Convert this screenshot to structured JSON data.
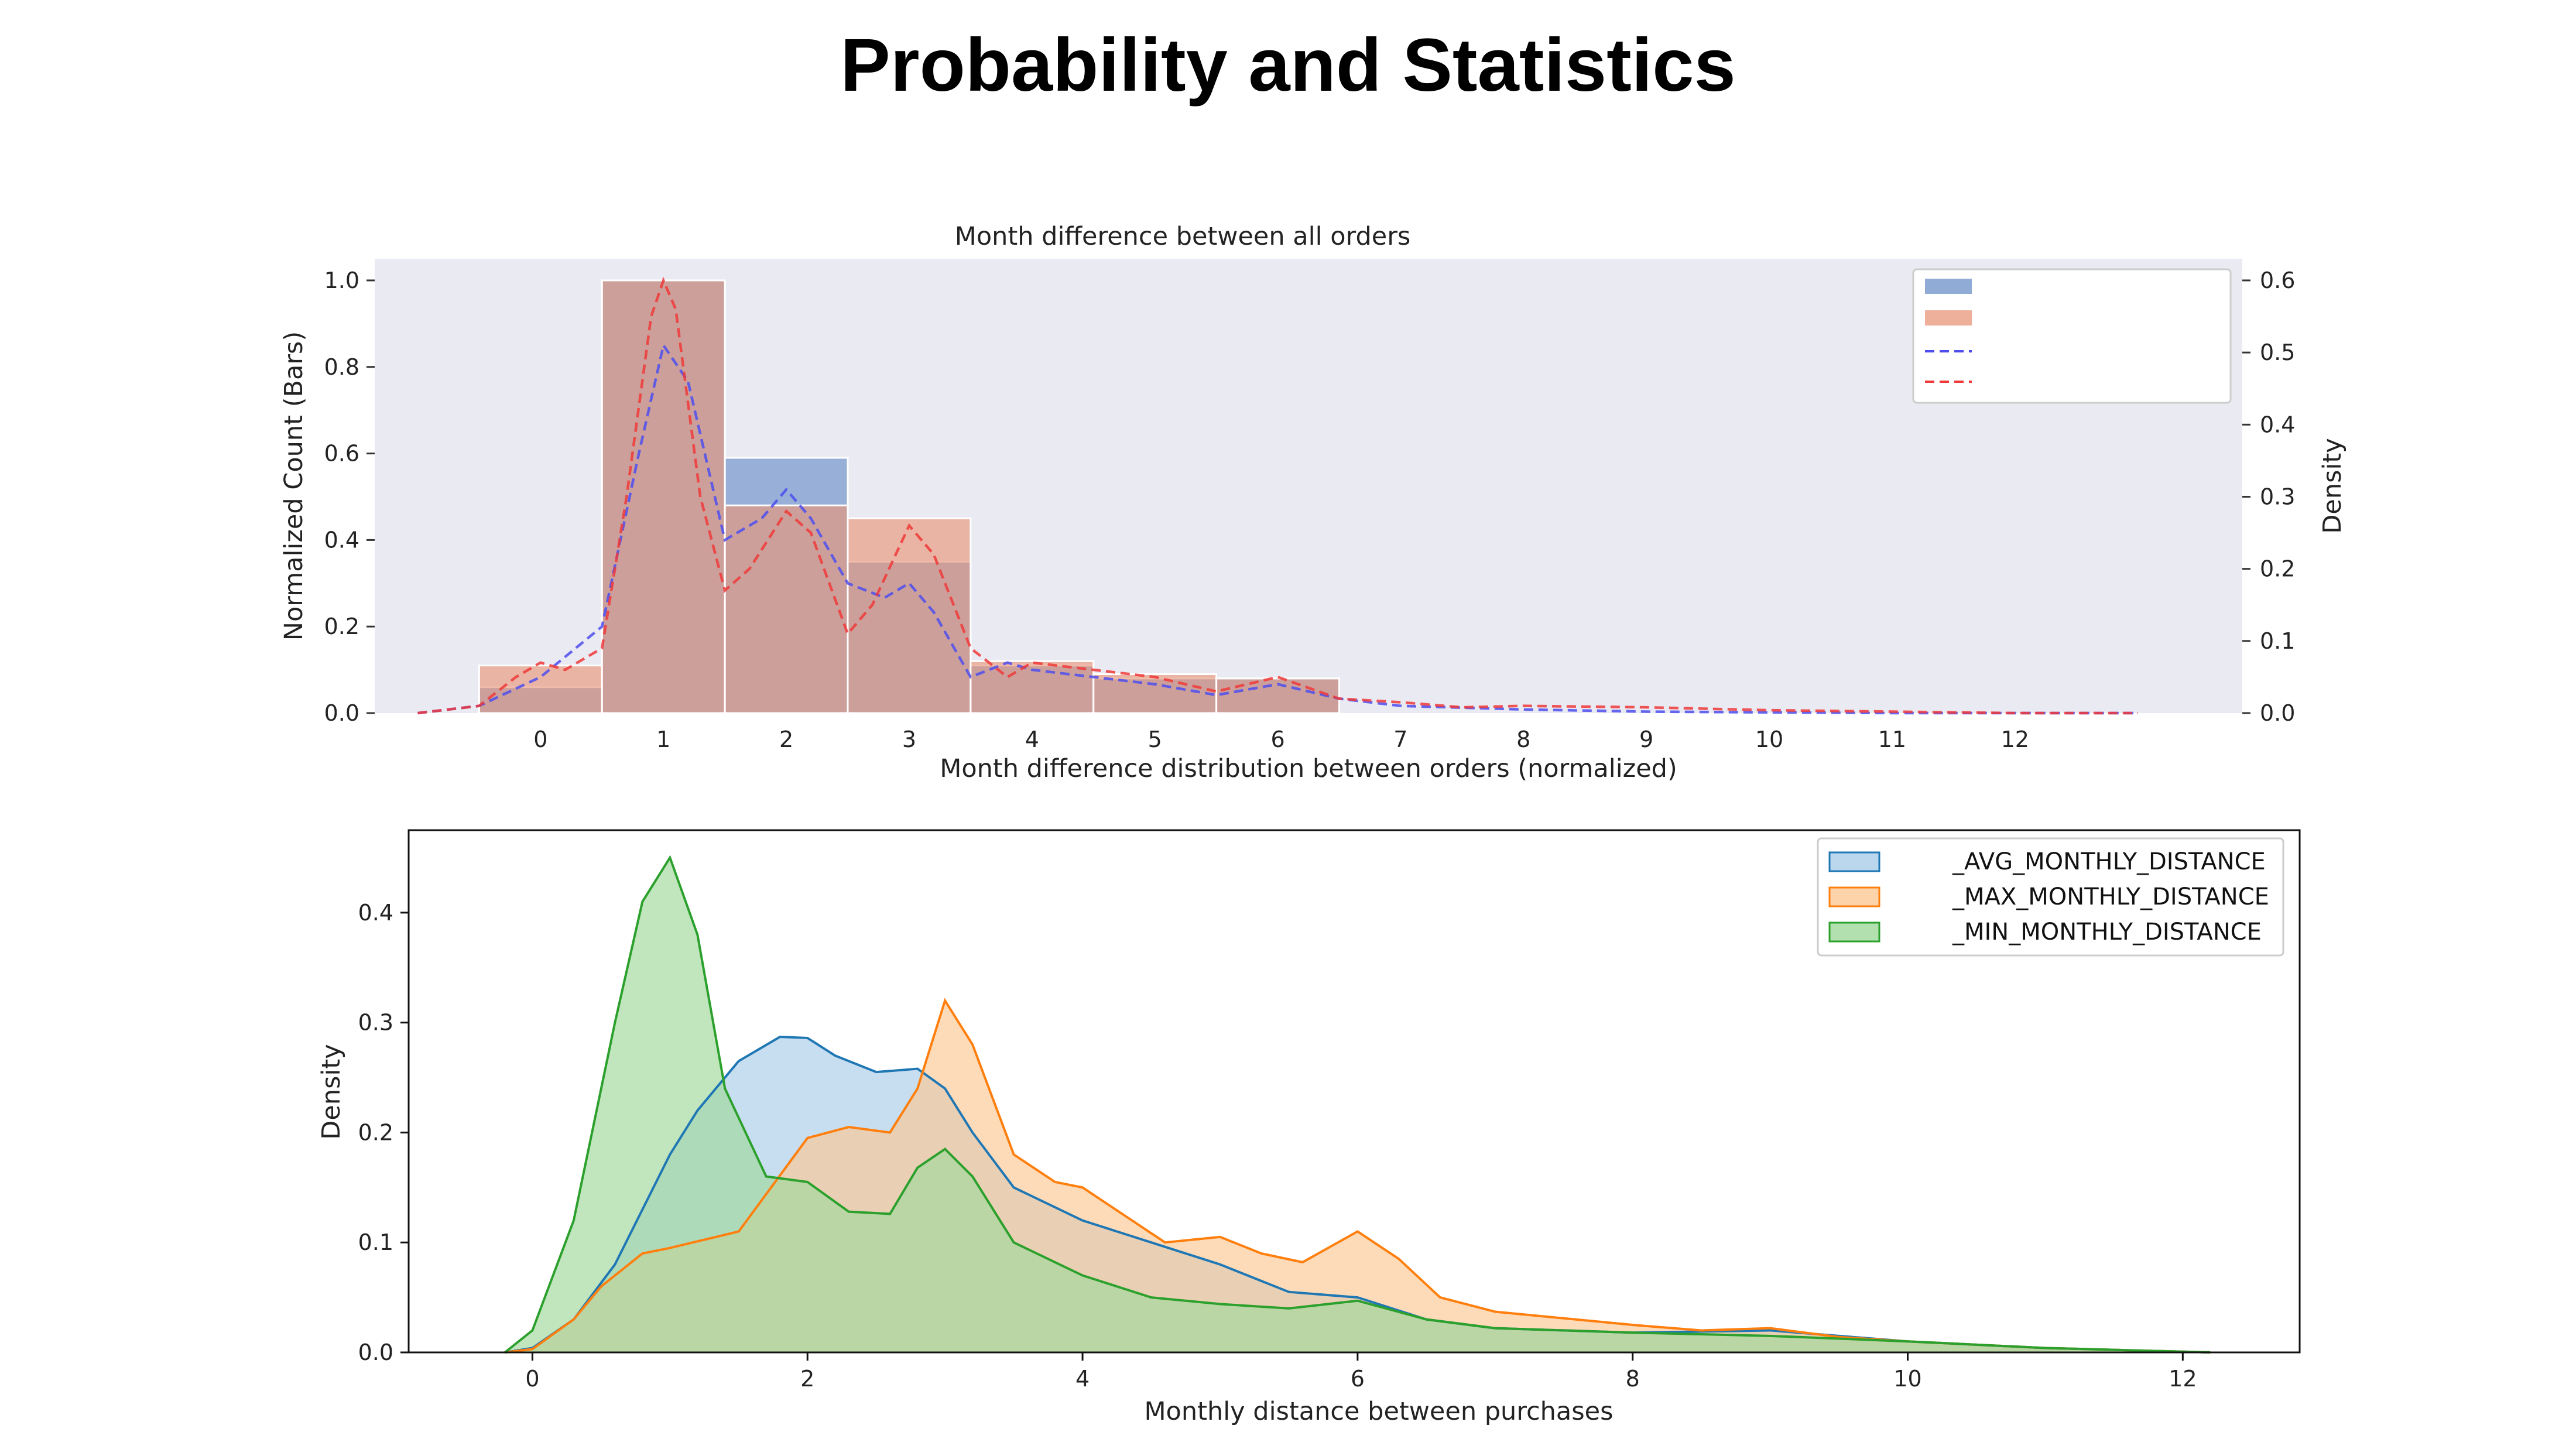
{
  "slide": {
    "title": "Probability and Statistics"
  },
  "chart_data": [
    {
      "type": "bar",
      "title": "Month difference between all orders",
      "xlabel": "Month difference distribution between orders (normalized)",
      "ylabel": "Normalized Count (Bars)",
      "y2label": "Density",
      "categories": [
        "0",
        "1",
        "2",
        "3",
        "4",
        "5",
        "6",
        "7",
        "8",
        "9",
        "10",
        "11",
        "12"
      ],
      "ylim": [
        0,
        1.05
      ],
      "y2lim": [
        0,
        0.63
      ],
      "yticks": [
        0.0,
        0.2,
        0.4,
        0.6,
        0.8,
        1.0
      ],
      "y2ticks": [
        0.0,
        0.1,
        0.2,
        0.3,
        0.4,
        0.5,
        0.6
      ],
      "xlim": [
        -1.35,
        13.85
      ],
      "grid": false,
      "legend_position": "top-right",
      "series": [
        {
          "kind": "bar",
          "color": "#6b8fc7",
          "values": [
            0.06,
            1.0,
            0.59,
            0.35,
            0.11,
            0.08,
            0.08,
            0,
            0,
            0,
            0,
            0,
            0
          ]
        },
        {
          "kind": "bar",
          "color": "#e8967a",
          "values": [
            0.11,
            1.0,
            0.48,
            0.45,
            0.12,
            0.09,
            0.08,
            0,
            0,
            0,
            0,
            0,
            0
          ]
        },
        {
          "kind": "density",
          "axis": "right",
          "color": "#4d4dee",
          "x": [
            -1.0,
            -0.5,
            0.0,
            0.5,
            0.8,
            1.0,
            1.2,
            1.5,
            1.8,
            2.0,
            2.2,
            2.5,
            2.8,
            3.0,
            3.2,
            3.5,
            3.8,
            4.0,
            4.5,
            5.0,
            5.5,
            6.0,
            6.5,
            7.0,
            8.0,
            9.0,
            10.0,
            11.0,
            12.0,
            13.0
          ],
          "y": [
            0.0,
            0.01,
            0.05,
            0.12,
            0.36,
            0.51,
            0.46,
            0.24,
            0.27,
            0.31,
            0.27,
            0.18,
            0.16,
            0.18,
            0.14,
            0.05,
            0.07,
            0.06,
            0.05,
            0.04,
            0.025,
            0.04,
            0.02,
            0.01,
            0.005,
            0.002,
            0.001,
            0.0,
            0.0,
            0.0
          ]
        },
        {
          "kind": "density",
          "axis": "right",
          "color": "#ee3a3a",
          "x": [
            -1.0,
            -0.5,
            -0.2,
            0.0,
            0.2,
            0.5,
            0.7,
            0.9,
            1.0,
            1.1,
            1.3,
            1.5,
            1.7,
            2.0,
            2.2,
            2.5,
            2.7,
            3.0,
            3.2,
            3.5,
            3.8,
            4.0,
            4.5,
            5.0,
            5.5,
            6.0,
            6.5,
            7.0,
            7.5,
            8.0,
            9.0,
            10.0,
            11.0,
            12.0,
            13.0
          ],
          "y": [
            0.0,
            0.01,
            0.05,
            0.07,
            0.06,
            0.09,
            0.3,
            0.55,
            0.6,
            0.56,
            0.3,
            0.17,
            0.2,
            0.28,
            0.25,
            0.11,
            0.15,
            0.26,
            0.22,
            0.09,
            0.05,
            0.07,
            0.06,
            0.05,
            0.03,
            0.05,
            0.02,
            0.015,
            0.008,
            0.01,
            0.008,
            0.004,
            0.002,
            0.0,
            0.0
          ]
        }
      ]
    },
    {
      "type": "area",
      "title": "",
      "xlabel": "Monthly distance between purchases",
      "ylabel": "Density",
      "xlim": [
        -0.9,
        12.85
      ],
      "ylim": [
        0,
        0.475
      ],
      "xticks": [
        0,
        2,
        4,
        6,
        8,
        10,
        12
      ],
      "yticks": [
        0.0,
        0.1,
        0.2,
        0.3,
        0.4
      ],
      "grid": false,
      "legend_position": "top-right",
      "series": [
        {
          "name": "_AVG_MONTHLY_DISTANCE",
          "stroke": "#1f77b4",
          "fill": "#a9cde8",
          "x": [
            -0.2,
            0.0,
            0.3,
            0.6,
            0.8,
            1.0,
            1.2,
            1.5,
            1.8,
            2.0,
            2.2,
            2.5,
            2.8,
            3.0,
            3.2,
            3.5,
            4.0,
            4.5,
            5.0,
            5.5,
            6.0,
            6.5,
            7.0,
            8.0,
            9.0,
            10.0,
            11.0,
            12.2
          ],
          "y": [
            0.0,
            0.004,
            0.03,
            0.08,
            0.13,
            0.18,
            0.22,
            0.265,
            0.287,
            0.286,
            0.27,
            0.255,
            0.258,
            0.24,
            0.2,
            0.15,
            0.12,
            0.1,
            0.08,
            0.055,
            0.05,
            0.03,
            0.022,
            0.018,
            0.02,
            0.01,
            0.004,
            0.0
          ]
        },
        {
          "name": "_MAX_MONTHLY_DISTANCE",
          "stroke": "#ff7f0e",
          "fill": "#fcc893",
          "x": [
            -0.2,
            0.0,
            0.3,
            0.5,
            0.8,
            1.0,
            1.5,
            2.0,
            2.3,
            2.6,
            2.8,
            3.0,
            3.2,
            3.5,
            3.8,
            4.0,
            4.3,
            4.6,
            5.0,
            5.3,
            5.6,
            6.0,
            6.3,
            6.6,
            7.0,
            8.0,
            8.5,
            9.0,
            9.5,
            10.0,
            11.0,
            12.2
          ],
          "y": [
            0.0,
            0.003,
            0.03,
            0.06,
            0.09,
            0.095,
            0.11,
            0.195,
            0.205,
            0.2,
            0.24,
            0.32,
            0.28,
            0.18,
            0.155,
            0.15,
            0.125,
            0.1,
            0.105,
            0.09,
            0.082,
            0.11,
            0.085,
            0.05,
            0.037,
            0.025,
            0.02,
            0.022,
            0.014,
            0.01,
            0.004,
            0.0
          ]
        },
        {
          "name": "_MIN_MONTHLY_DISTANCE",
          "stroke": "#2ca02c",
          "fill": "#9fd99b",
          "x": [
            -0.2,
            0.0,
            0.3,
            0.6,
            0.8,
            1.0,
            1.2,
            1.4,
            1.7,
            2.0,
            2.3,
            2.6,
            2.8,
            3.0,
            3.2,
            3.5,
            4.0,
            4.5,
            5.0,
            5.5,
            6.0,
            6.5,
            7.0,
            8.0,
            9.0,
            10.0,
            11.0,
            12.2
          ],
          "y": [
            0.0,
            0.02,
            0.12,
            0.3,
            0.41,
            0.45,
            0.38,
            0.24,
            0.16,
            0.155,
            0.128,
            0.126,
            0.168,
            0.185,
            0.16,
            0.1,
            0.07,
            0.05,
            0.044,
            0.04,
            0.047,
            0.03,
            0.022,
            0.018,
            0.015,
            0.01,
            0.004,
            0.0
          ]
        }
      ]
    }
  ]
}
